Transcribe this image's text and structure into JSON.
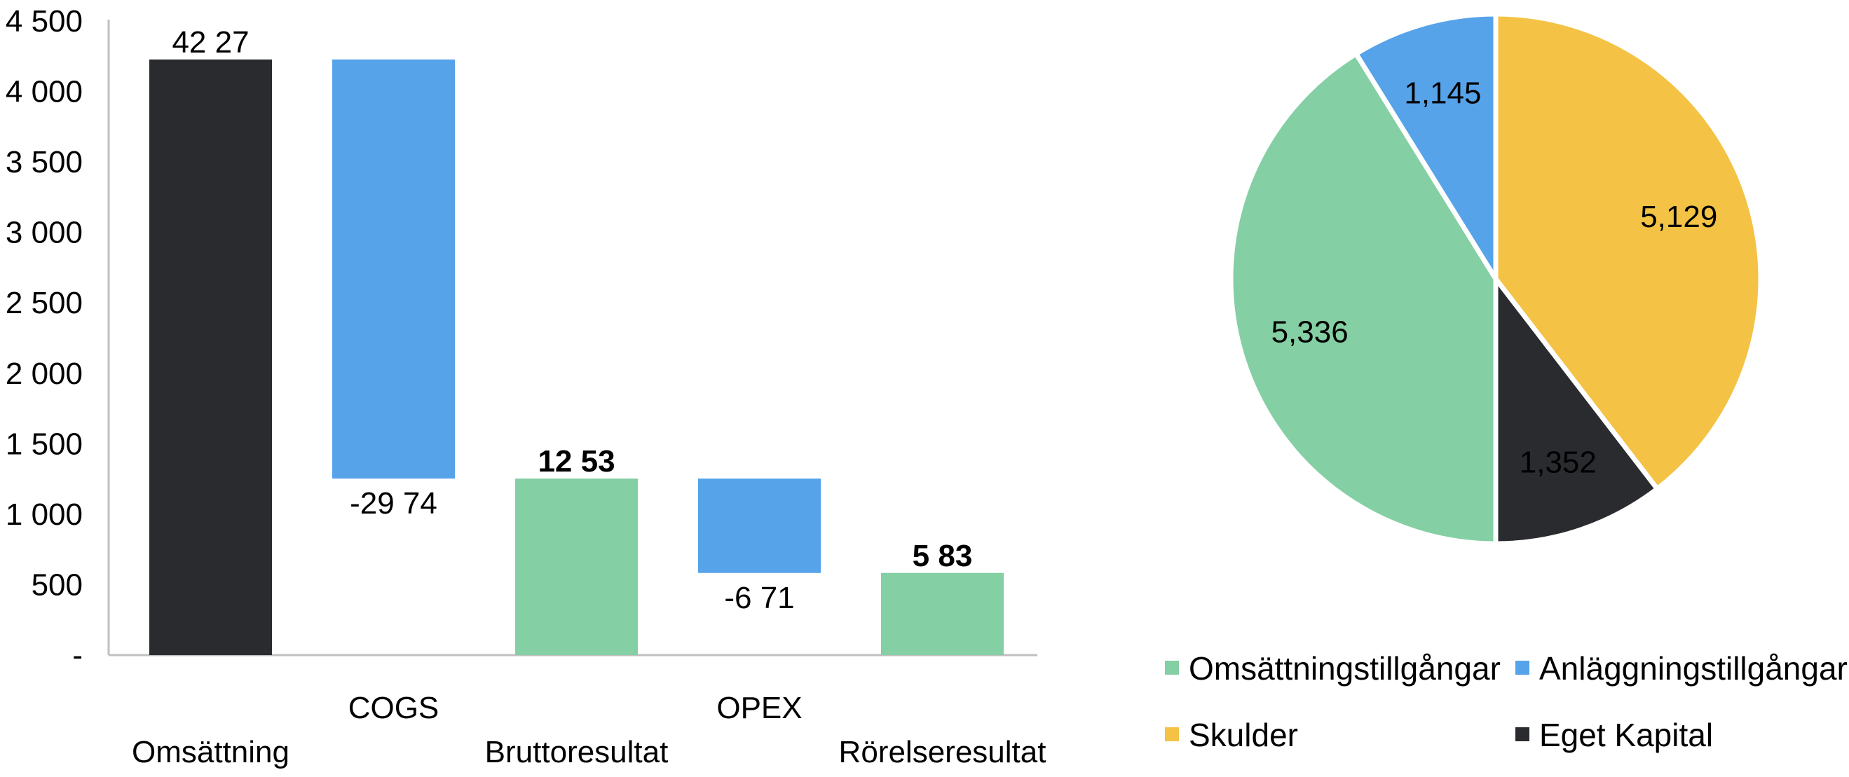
{
  "colors": {
    "black": "#2a2b2f",
    "blue": "#56a3ea",
    "green": "#84cfa3",
    "yellow": "#f4c244"
  },
  "chart_data": [
    {
      "type": "bar",
      "subtype": "waterfall",
      "ylim": [
        0,
        4500
      ],
      "yticks": [
        {
          "value": 0,
          "label": "-"
        },
        {
          "value": 500,
          "label": "500"
        },
        {
          "value": 1000,
          "label": "1 000"
        },
        {
          "value": 1500,
          "label": "1 500"
        },
        {
          "value": 2000,
          "label": "2 000"
        },
        {
          "value": 2500,
          "label": "2 500"
        },
        {
          "value": 3000,
          "label": "3 000"
        },
        {
          "value": 3500,
          "label": "3 500"
        },
        {
          "value": 4000,
          "label": "4 000"
        },
        {
          "value": 4500,
          "label": "4 500"
        }
      ],
      "grid": false,
      "bars": [
        {
          "category": "Omsättning",
          "start": 0,
          "end": 4227,
          "label": "42 27",
          "color": "black",
          "label_bold": false,
          "label_pos": "above",
          "cat_row": "low"
        },
        {
          "category": "COGS",
          "start": 4227,
          "end": 1253,
          "label": "-29 74",
          "color": "blue",
          "label_bold": false,
          "label_pos": "below",
          "cat_row": "high"
        },
        {
          "category": "Bruttoresultat",
          "start": 0,
          "end": 1253,
          "label": "12 53",
          "color": "green",
          "label_bold": true,
          "label_pos": "above",
          "cat_row": "low"
        },
        {
          "category": "OPEX",
          "start": 1253,
          "end": 583,
          "label": "-6 71",
          "color": "blue",
          "label_bold": false,
          "label_pos": "below",
          "cat_row": "high"
        },
        {
          "category": "Rörelseresultat",
          "start": 0,
          "end": 583,
          "label": "5 83",
          "color": "green",
          "label_bold": true,
          "label_pos": "above",
          "cat_row": "low"
        }
      ]
    },
    {
      "type": "pie",
      "slices": [
        {
          "name": "Skulder",
          "value": 5129,
          "label": "5,129",
          "color": "yellow"
        },
        {
          "name": "Eget Kapital",
          "value": 1352,
          "label": "1,352",
          "color": "black"
        },
        {
          "name": "Omsättningstillgångar",
          "value": 5336,
          "label": "5,336",
          "color": "green"
        },
        {
          "name": "Anläggningstillgångar",
          "value": 1145,
          "label": "1,145",
          "color": "blue"
        }
      ],
      "legend": [
        {
          "name": "Omsättningstillgångar",
          "color": "green"
        },
        {
          "name": "Anläggningstillgångar",
          "color": "blue"
        },
        {
          "name": "Skulder",
          "color": "yellow"
        },
        {
          "name": "Eget Kapital",
          "color": "black"
        }
      ],
      "legend_position": "bottom"
    }
  ]
}
